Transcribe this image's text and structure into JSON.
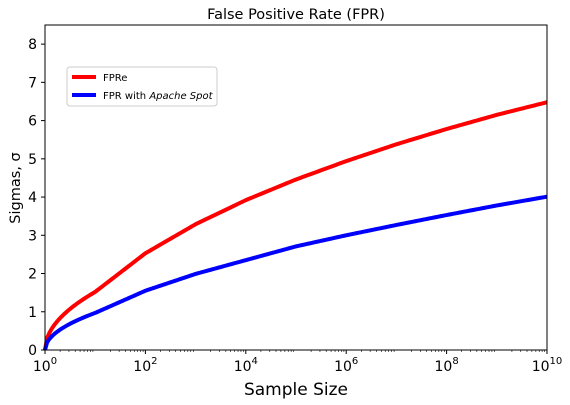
{
  "chart_data": {
    "type": "line",
    "title": "False Positive Rate (FPR)",
    "xlabel": "Sample Size",
    "ylabel": "Sigmas, σ",
    "x_scale": "log",
    "xlim": [
      1,
      10000000000
    ],
    "ylim": [
      0,
      8.5
    ],
    "x_ticks": [
      {
        "value": 1,
        "base": "10",
        "exp": "0"
      },
      {
        "value": 100,
        "base": "10",
        "exp": "2"
      },
      {
        "value": 10000,
        "base": "10",
        "exp": "4"
      },
      {
        "value": 1000000,
        "base": "10",
        "exp": "6"
      },
      {
        "value": 100000000,
        "base": "10",
        "exp": "8"
      },
      {
        "value": 10000000000,
        "base": "10",
        "exp": "10"
      }
    ],
    "y_ticks": [
      "0",
      "1",
      "2",
      "3",
      "4",
      "5",
      "6",
      "7",
      "8"
    ],
    "grid": false,
    "legend_position": "upper-left",
    "series": [
      {
        "name": "FPRe",
        "color": "#ff0000",
        "x": [
          1,
          10,
          100,
          1000,
          10000,
          100000,
          1000000,
          10000000,
          100000000,
          1000000000,
          10000000000
        ],
        "y": [
          0,
          1.52,
          2.53,
          3.29,
          3.92,
          4.46,
          4.94,
          5.38,
          5.78,
          6.15,
          6.48
        ]
      },
      {
        "name_prefix": "FPR with ",
        "name_italic": "Apache Spot",
        "color": "#0000ff",
        "x": [
          1,
          10,
          100,
          1000,
          10000,
          100000,
          1000000,
          10000000,
          100000000,
          1000000000,
          10000000000
        ],
        "y": [
          0,
          0.97,
          1.55,
          1.99,
          2.35,
          2.71,
          3.0,
          3.27,
          3.53,
          3.78,
          4.01
        ]
      }
    ]
  }
}
